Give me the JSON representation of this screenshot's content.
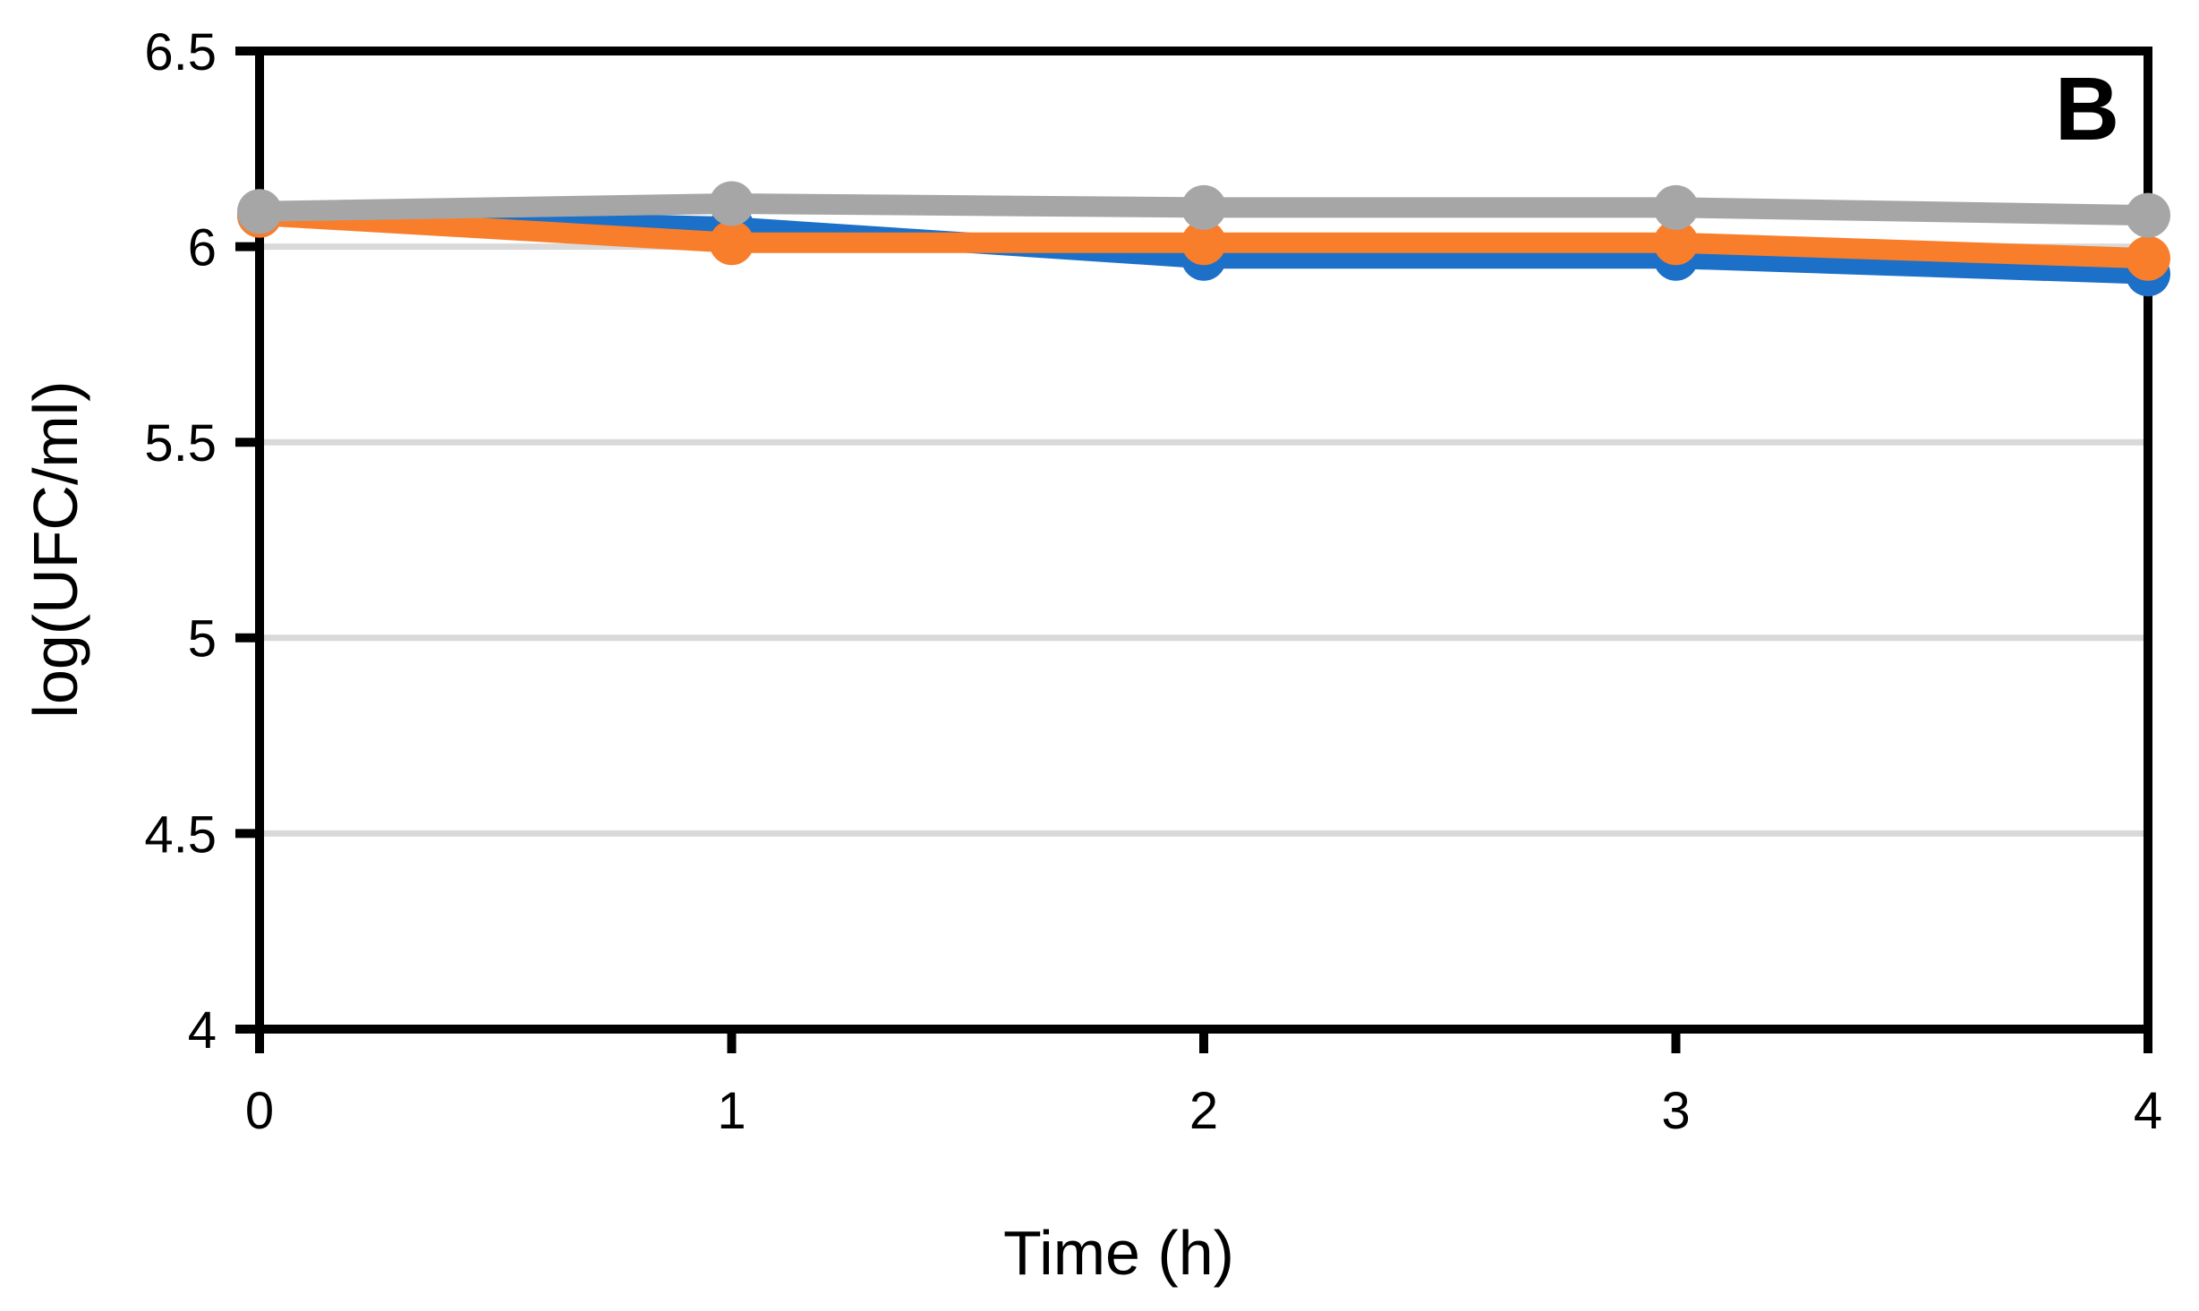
{
  "chart_data": {
    "type": "line",
    "panel_label": "B",
    "xlabel": "Time (h)",
    "ylabel": "log(UFC/ml)",
    "x": [
      0,
      1,
      2,
      3,
      4
    ],
    "series": [
      {
        "name": "blue",
        "color": "#1C70C8",
        "values": [
          6.08,
          6.05,
          5.97,
          5.97,
          5.93
        ]
      },
      {
        "name": "orange",
        "color": "#F87E2B",
        "values": [
          6.08,
          6.01,
          6.01,
          6.01,
          5.97
        ]
      },
      {
        "name": "gray",
        "color": "#A6A6A6",
        "values": [
          6.09,
          6.11,
          6.1,
          6.1,
          6.08
        ]
      }
    ],
    "xlim": [
      0,
      4
    ],
    "ylim": [
      4,
      6.5
    ],
    "xticks": [
      0,
      1,
      2,
      3,
      4
    ],
    "xtick_labels": [
      "0",
      "1",
      "2",
      "3",
      "4"
    ],
    "yticks": [
      4,
      4.5,
      5,
      5.5,
      6,
      6.5
    ],
    "ytick_labels": [
      "4",
      "4.5",
      "5",
      "5.5",
      "6",
      "6.5"
    ],
    "gridline_values": [
      4.5,
      5,
      5.5,
      6
    ],
    "grid_on": true,
    "legend": "none",
    "marker": "circle",
    "colors": {
      "grid": "#D9D9D9",
      "axis": "#000000",
      "background": "#FFFFFF",
      "text": "#000000"
    }
  }
}
